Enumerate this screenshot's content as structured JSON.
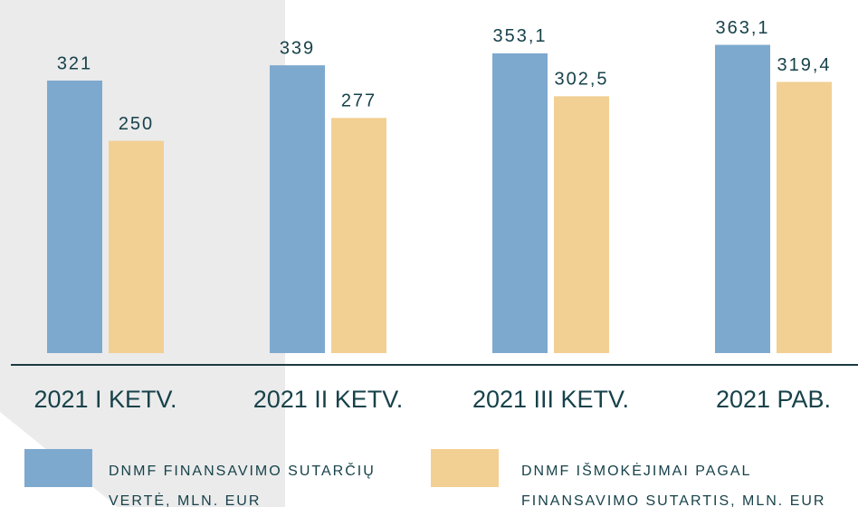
{
  "chart_data": {
    "type": "bar",
    "categories": [
      "2021 I KETV.",
      "2021 II KETV.",
      "2021 III KETV.",
      "2021 PAB."
    ],
    "series": [
      {
        "name": "DNMF FINANSAVIMO SUTARČIŲ VERTĖ, MLN. EUR",
        "color": "#7ea9cf",
        "values": [
          321,
          339,
          353.1,
          363.1
        ],
        "value_labels": [
          "321",
          "339",
          "353,1",
          "363,1"
        ]
      },
      {
        "name": "DNMF IŠMOKĖJIMAI PAGAL FINANSAVIMO SUTARTIS, MLN. EUR",
        "color": "#f2cf93",
        "values": [
          250,
          277,
          302.5,
          319.4
        ],
        "value_labels": [
          "250",
          "277",
          "302,5",
          "319,4"
        ]
      }
    ]
  }
}
